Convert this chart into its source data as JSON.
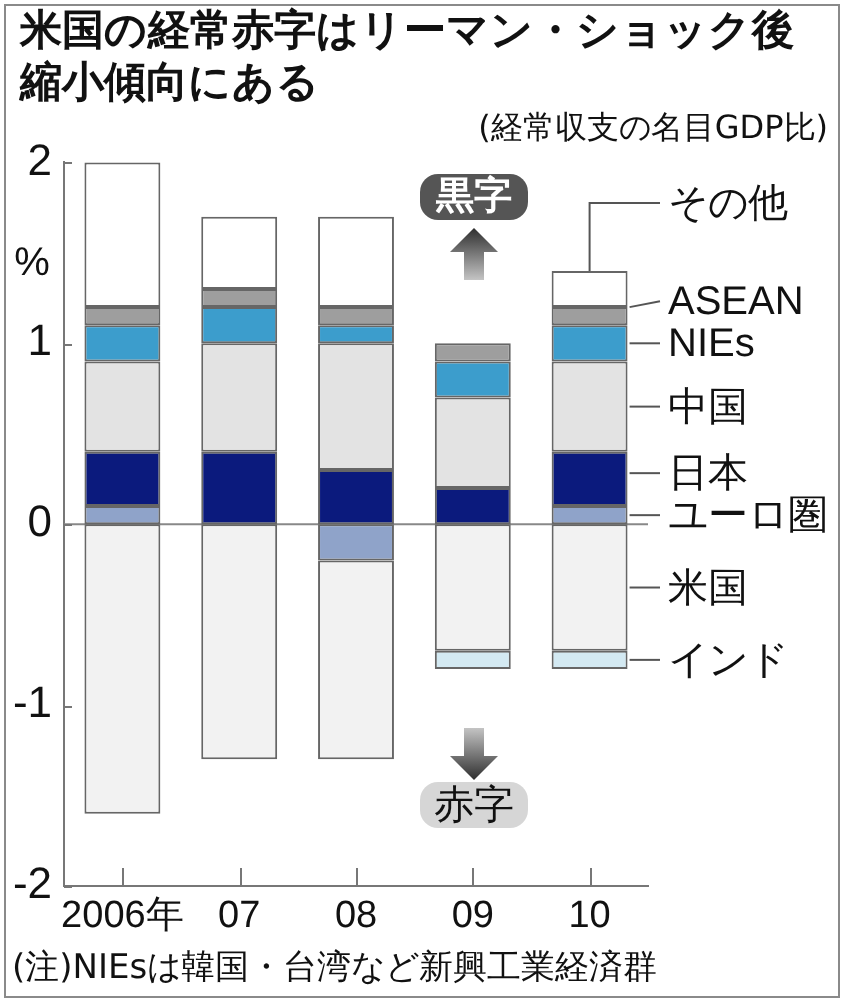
{
  "chart_data": {
    "type": "bar",
    "title": "米国の経常赤字はリーマン・ショック後縮小傾向にある",
    "subtitle": "(経常収支の名目GDP比)",
    "ylabel": "%",
    "categories": [
      "2006年",
      "07",
      "08",
      "09",
      "10"
    ],
    "stacked": true,
    "ylim": [
      -2,
      2
    ],
    "yticks": [
      -2,
      -1,
      0,
      1,
      2
    ],
    "series": [
      {
        "name": "ユーロ圏",
        "color": "#8fa3c9",
        "values": [
          0.1,
          null,
          -0.2,
          null,
          0.1
        ]
      },
      {
        "name": "日本",
        "color": "#0b1a7d",
        "values": [
          0.3,
          0.4,
          0.3,
          0.2,
          0.3
        ]
      },
      {
        "name": "中国",
        "color": "#e3e3e3",
        "values": [
          0.5,
          0.6,
          0.7,
          0.5,
          0.5
        ]
      },
      {
        "name": "NIEs",
        "color": "#3c9dcc",
        "values": [
          0.2,
          0.2,
          0.1,
          0.2,
          0.2
        ]
      },
      {
        "name": "ASEAN",
        "color": "#9e9e9e",
        "values": [
          0.1,
          0.1,
          0.1,
          0.1,
          0.1
        ]
      },
      {
        "name": "その他",
        "color": "#ffffff",
        "values": [
          0.8,
          0.4,
          0.5,
          null,
          0.2
        ]
      },
      {
        "name": "米国",
        "color": "#f2f2f2",
        "values": [
          -1.6,
          -1.3,
          -1.1,
          -0.7,
          -0.7
        ]
      },
      {
        "name": "インド",
        "color": "#d3e9f2",
        "values": [
          null,
          null,
          null,
          -0.1,
          -0.1
        ]
      }
    ],
    "ref_lines": [
      {
        "axis": "y",
        "value": 0,
        "color": "#888888"
      }
    ],
    "annotations": [
      "黒字",
      "赤字",
      "(注)NIEsは韓国・台湾など新興工業経済群"
    ]
  }
}
